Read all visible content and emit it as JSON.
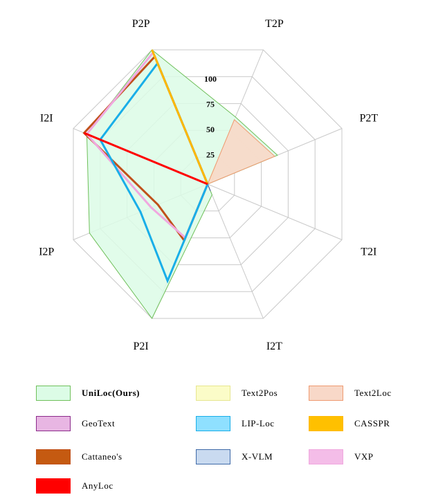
{
  "chart_data": {
    "type": "radar",
    "axes": [
      "T2P",
      "P2T",
      "T2I",
      "I2T",
      "P2I",
      "I2P",
      "I2I",
      "P2P"
    ],
    "r_ticks": [
      "25",
      "50",
      "75",
      "100"
    ],
    "rlim": [
      0,
      100
    ],
    "series": [
      {
        "name": "UniLoc(Ours)",
        "fill": "#dcfce6",
        "stroke": "#6fbf5a",
        "filled": true,
        "bold": true,
        "values": [
          50,
          52,
          0,
          8,
          100,
          88,
          90,
          100
        ]
      },
      {
        "name": "Text2Pos",
        "fill": "#fbfcc8",
        "stroke": "#e6e690",
        "filled": true,
        "values": [
          15,
          3,
          0,
          0,
          0,
          0,
          0,
          0
        ]
      },
      {
        "name": "Text2Loc",
        "fill": "#f8d8c8",
        "stroke": "#ef9a70",
        "filled": true,
        "values": [
          48,
          50,
          0,
          0,
          0,
          0,
          0,
          0
        ]
      },
      {
        "name": "GeoText",
        "fill": "#e8b6e3",
        "stroke": "#8b2b8b",
        "filled": true,
        "values": [
          0,
          0,
          0,
          5,
          0,
          0,
          0,
          0
        ]
      },
      {
        "name": "LIP-Loc",
        "fill": "#8fe0ff",
        "stroke": "#19aee8",
        "filled": false,
        "values": [
          0,
          0,
          0,
          0,
          72,
          50,
          80,
          90
        ]
      },
      {
        "name": "CASSPR",
        "fill": "#ffc000",
        "stroke": "#ffb800",
        "filled": false,
        "values": [
          0,
          0,
          0,
          0,
          0,
          0,
          0,
          100
        ]
      },
      {
        "name": "Cattaneo's",
        "fill": "#c55a11",
        "stroke": "#c0501a",
        "filled": false,
        "values": [
          0,
          0,
          0,
          0,
          42,
          37,
          92,
          95
        ]
      },
      {
        "name": "X-VLM",
        "fill": "#c9daf0",
        "stroke": "#3f6aa8",
        "filled": true,
        "values": [
          0,
          0,
          0,
          5,
          0,
          0,
          0,
          0
        ]
      },
      {
        "name": "VXP",
        "fill": "#f4bde8",
        "stroke": "#f0a8df",
        "filled": false,
        "values": [
          0,
          0,
          0,
          0,
          40,
          42,
          90,
          98
        ]
      },
      {
        "name": "AnyLoc",
        "fill": "#ff0000",
        "stroke": "#ff0000",
        "filled": false,
        "values": [
          0,
          0,
          0,
          0,
          0,
          0,
          92,
          0
        ]
      }
    ]
  }
}
